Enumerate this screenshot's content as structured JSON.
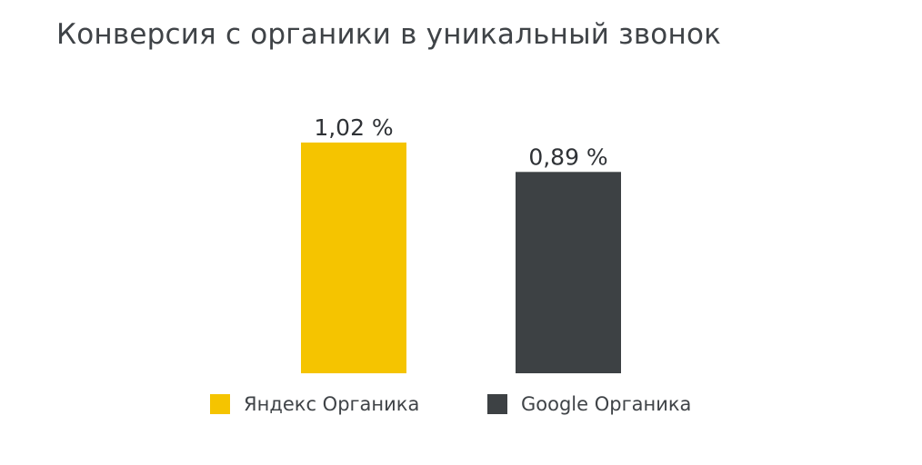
{
  "chart_data": {
    "type": "bar",
    "title": "Конверсия с органики в уникальный звонок",
    "categories": [
      "Яндекс Органика",
      "Google Органика"
    ],
    "values": [
      1.02,
      0.89
    ],
    "value_labels": [
      "1,02 %",
      "0,89 %"
    ],
    "colors": [
      "#f5c400",
      "#3d4144"
    ],
    "xlabel": "",
    "ylabel": "",
    "ylim": [
      0,
      1.1
    ],
    "grid": false,
    "legend_position": "bottom"
  }
}
